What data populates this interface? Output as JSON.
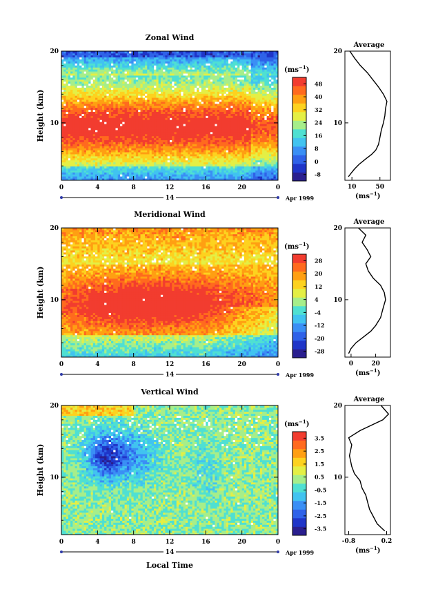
{
  "page": {
    "xlabel": "Local Time"
  },
  "chart_data": [
    {
      "type": "heatmap",
      "title": "Zonal Wind",
      "ylabel": "Height (km)",
      "x_ticks": [
        "0",
        "4",
        "8",
        "12",
        "16",
        "20",
        "0"
      ],
      "y_ticks": [
        "20",
        "10"
      ],
      "date_day": "14",
      "date_label": "Apr 1999",
      "ylim": [
        2,
        20
      ],
      "xlim": [
        0,
        24
      ],
      "colorbar": {
        "unit": "(ms",
        "unit_exp": "−1",
        "unit_close": ")",
        "ticks": [
          "48",
          "40",
          "32",
          "24",
          "16",
          "8",
          "0",
          "-8"
        ],
        "range": [
          -12,
          52
        ],
        "colors": [
          "#2a1f8f",
          "#1f35c8",
          "#2f62e8",
          "#3a8ff5",
          "#41c3f0",
          "#4fe0d2",
          "#a6ee8a",
          "#e4ef45",
          "#fdd21f",
          "#ff9f12",
          "#ff6a1e",
          "#f23c2f"
        ]
      },
      "avg_title": "Average",
      "avg_xticks": [
        "10",
        "50"
      ],
      "avg_xlim": [
        0,
        65
      ],
      "avg_unit": "(ms",
      "avg_unit_exp": "−1",
      "avg_unit_close": ")",
      "avg_profile": [
        [
          5,
          2.5
        ],
        [
          9,
          3
        ],
        [
          14,
          3.6
        ],
        [
          20,
          4.2
        ],
        [
          30,
          5
        ],
        [
          38,
          5.6
        ],
        [
          44,
          6.2
        ],
        [
          48,
          7
        ],
        [
          50,
          8
        ],
        [
          52,
          9
        ],
        [
          55,
          10
        ],
        [
          57,
          11
        ],
        [
          58,
          12
        ],
        [
          60,
          13
        ],
        [
          55,
          14
        ],
        [
          48,
          15
        ],
        [
          40,
          16
        ],
        [
          32,
          17
        ],
        [
          22,
          18
        ],
        [
          14,
          19
        ],
        [
          7,
          20
        ]
      ]
    },
    {
      "type": "heatmap",
      "title": "Meridional Wind",
      "ylabel": "Height (km)",
      "x_ticks": [
        "0",
        "4",
        "8",
        "12",
        "16",
        "20",
        "0"
      ],
      "y_ticks": [
        "20",
        "10"
      ],
      "date_day": "14",
      "date_label": "Apr 1999",
      "ylim": [
        2,
        20
      ],
      "xlim": [
        0,
        24
      ],
      "colorbar": {
        "unit": "(ms",
        "unit_exp": "−1",
        "unit_close": ")",
        "ticks": [
          "28",
          "20",
          "12",
          "4",
          "-4",
          "-12",
          "-20",
          "-28"
        ],
        "range": [
          -32,
          32
        ],
        "colors": [
          "#2a1f8f",
          "#1f35c8",
          "#2f62e8",
          "#3a8ff5",
          "#41c3f0",
          "#4fe0d2",
          "#a6ee8a",
          "#e4ef45",
          "#fdd21f",
          "#ff9f12",
          "#ff6a1e",
          "#f23c2f"
        ]
      },
      "avg_title": "Average",
      "avg_xticks": [
        "0",
        "20"
      ],
      "avg_xlim": [
        -5,
        32
      ],
      "avg_unit": "(ms",
      "avg_unit_exp": "−1",
      "avg_unit_close": ")",
      "avg_profile": [
        [
          -2,
          2.5
        ],
        [
          0,
          3.2
        ],
        [
          4,
          4
        ],
        [
          10,
          4.8
        ],
        [
          16,
          5.6
        ],
        [
          20,
          6.4
        ],
        [
          24,
          7.5
        ],
        [
          26,
          8.8
        ],
        [
          28,
          10
        ],
        [
          27,
          11
        ],
        [
          24,
          12
        ],
        [
          18,
          13
        ],
        [
          14,
          14
        ],
        [
          12,
          15
        ],
        [
          16,
          16
        ],
        [
          13,
          17
        ],
        [
          9,
          18
        ],
        [
          12,
          19
        ],
        [
          6,
          20
        ]
      ]
    },
    {
      "type": "heatmap",
      "title": "Vertical Wind",
      "ylabel": "Height (km)",
      "x_ticks": [
        "0",
        "4",
        "8",
        "12",
        "16",
        "20",
        "0"
      ],
      "y_ticks": [
        "20",
        "10"
      ],
      "date_day": "14",
      "date_label": "Apr 1999",
      "ylim": [
        2,
        20
      ],
      "xlim": [
        0,
        24
      ],
      "colorbar": {
        "unit": "(ms",
        "unit_exp": "−1",
        "unit_close": ")",
        "ticks": [
          "3.5",
          "2.5",
          "1.5",
          "0.5",
          "-0.5",
          "-1.5",
          "-2.5",
          "-3.5"
        ],
        "range": [
          -4,
          4
        ],
        "colors": [
          "#2a1f8f",
          "#1f35c8",
          "#2f62e8",
          "#3a8ff5",
          "#41c3f0",
          "#4fe0d2",
          "#a6ee8a",
          "#e4ef45",
          "#fdd21f",
          "#ff9f12",
          "#ff6a1e",
          "#f23c2f"
        ]
      },
      "avg_title": "Average",
      "avg_xticks": [
        "-0.8",
        "0.2"
      ],
      "avg_xlim": [
        -0.9,
        0.3
      ],
      "avg_unit": "(ms",
      "avg_unit_exp": "−1",
      "avg_unit_close": ")",
      "avg_profile": [
        [
          0.15,
          2.5
        ],
        [
          0.05,
          3
        ],
        [
          -0.05,
          3.5
        ],
        [
          -0.15,
          4.5
        ],
        [
          -0.25,
          5.5
        ],
        [
          -0.3,
          6.5
        ],
        [
          -0.35,
          7.5
        ],
        [
          -0.45,
          8.5
        ],
        [
          -0.5,
          9.5
        ],
        [
          -0.65,
          10.5
        ],
        [
          -0.72,
          11.5
        ],
        [
          -0.78,
          13
        ],
        [
          -0.72,
          14.5
        ],
        [
          -0.8,
          15.5
        ],
        [
          -0.5,
          16.5
        ],
        [
          0.1,
          18
        ],
        [
          0.25,
          18.8
        ],
        [
          0.05,
          20
        ]
      ]
    }
  ]
}
